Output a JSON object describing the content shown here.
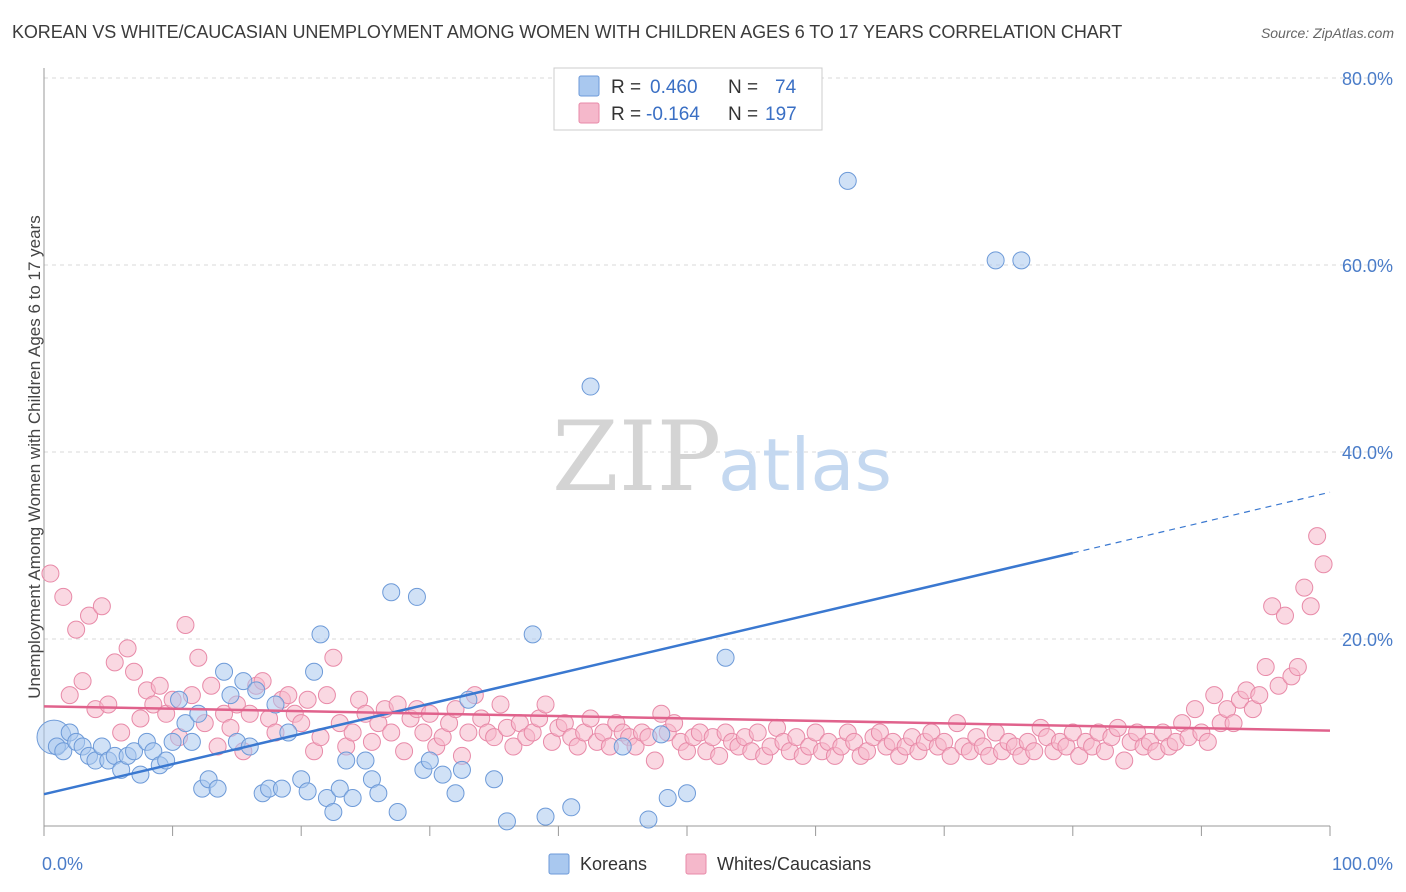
{
  "title": "KOREAN VS WHITE/CAUCASIAN UNEMPLOYMENT AMONG WOMEN WITH CHILDREN AGES 6 TO 17 YEARS CORRELATION CHART",
  "source": "Source: ZipAtlas.com",
  "watermark": {
    "part1": "ZIP",
    "part2": "atlas"
  },
  "colors": {
    "koreans_fill": "#a9c8ef",
    "koreans_stroke": "#6d9ad8",
    "koreans_line": "#3a78d0",
    "whites_fill": "#f5b8cb",
    "whites_stroke": "#e88aa8",
    "whites_line": "#e0628c",
    "grid": "#d9d9d9",
    "tick_label": "#4a7cc8"
  },
  "legend": {
    "rows": [
      {
        "r_label": "R =",
        "r_value": "0.460",
        "n_label": "N =",
        "n_value": "74"
      },
      {
        "r_label": "R =",
        "r_value": "-0.164",
        "n_label": "N =",
        "n_value": "197"
      }
    ]
  },
  "bottom_legend": [
    "Koreans",
    "Whites/Caucasians"
  ],
  "chart_data": {
    "type": "scatter",
    "title": "KOREAN VS WHITE/CAUCASIAN UNEMPLOYMENT AMONG WOMEN WITH CHILDREN AGES 6 TO 17 YEARS CORRELATION CHART",
    "xlabel": "",
    "ylabel": "Unemployment Among Women with Children Ages 6 to 17 years",
    "xlim": [
      0,
      100
    ],
    "ylim": [
      0,
      80
    ],
    "x_tick_labels": [
      "0.0%",
      "100.0%"
    ],
    "y_ticks": [
      20,
      40,
      60,
      80
    ],
    "y_tick_labels": [
      "20.0%",
      "40.0%",
      "60.0%",
      "80.0%"
    ],
    "grid": true,
    "legend_position": "top-center",
    "series": [
      {
        "name": "Koreans",
        "r": 0.46,
        "n": 74,
        "trend": {
          "x0": 0,
          "y0": 3.4,
          "x1": 80,
          "y1": 29.2,
          "dashed_to_x": 100,
          "dashed_to_y": 35.7
        },
        "points": [
          [
            0,
            9.5
          ],
          [
            1,
            8.5
          ],
          [
            1.5,
            8
          ],
          [
            2,
            10
          ],
          [
            2.5,
            9
          ],
          [
            3,
            8.5
          ],
          [
            3.5,
            7.5
          ],
          [
            4,
            7
          ],
          [
            4.5,
            8.5
          ],
          [
            5,
            7
          ],
          [
            5.5,
            7.5
          ],
          [
            6,
            6
          ],
          [
            6.5,
            7.5
          ],
          [
            7,
            8
          ],
          [
            7.5,
            5.5
          ],
          [
            8,
            9
          ],
          [
            8.5,
            8
          ],
          [
            9,
            6.5
          ],
          [
            9.5,
            7
          ],
          [
            10,
            9
          ],
          [
            10.5,
            13.5
          ],
          [
            11,
            11
          ],
          [
            11.5,
            9
          ],
          [
            12,
            12
          ],
          [
            12.3,
            4
          ],
          [
            12.8,
            5
          ],
          [
            13.5,
            4
          ],
          [
            14,
            16.5
          ],
          [
            14.5,
            14
          ],
          [
            15,
            9
          ],
          [
            15.5,
            15.5
          ],
          [
            16,
            8.5
          ],
          [
            16.5,
            14.5
          ],
          [
            17,
            3.5
          ],
          [
            17.5,
            4
          ],
          [
            18,
            13
          ],
          [
            18.5,
            4
          ],
          [
            19,
            10
          ],
          [
            20,
            5
          ],
          [
            20.5,
            3.7
          ],
          [
            21,
            16.5
          ],
          [
            21.5,
            20.5
          ],
          [
            22,
            3
          ],
          [
            22.5,
            1.5
          ],
          [
            23,
            4
          ],
          [
            23.5,
            7
          ],
          [
            24,
            3
          ],
          [
            25,
            7
          ],
          [
            25.5,
            5
          ],
          [
            26,
            3.5
          ],
          [
            27,
            25
          ],
          [
            27.5,
            1.5
          ],
          [
            29,
            24.5
          ],
          [
            29.5,
            6
          ],
          [
            30,
            7
          ],
          [
            31,
            5.5
          ],
          [
            32,
            3.5
          ],
          [
            32.5,
            6
          ],
          [
            33,
            13.5
          ],
          [
            35,
            5
          ],
          [
            36,
            0.5
          ],
          [
            38,
            20.5
          ],
          [
            39,
            1
          ],
          [
            41,
            2
          ],
          [
            42.5,
            47
          ],
          [
            47,
            0.7
          ],
          [
            48.5,
            3
          ],
          [
            50,
            3.5
          ],
          [
            53,
            18
          ],
          [
            62.5,
            69
          ],
          [
            74,
            60.5
          ],
          [
            76,
            60.5
          ],
          [
            45,
            8.5
          ],
          [
            48,
            9.8
          ]
        ]
      },
      {
        "name": "Whites/Caucasians",
        "r": -0.164,
        "n": 197,
        "trend": {
          "x0": 0,
          "y0": 12.8,
          "x1": 100,
          "y1": 10.2
        },
        "points": [
          [
            0.5,
            27
          ],
          [
            1.5,
            24.5
          ],
          [
            2,
            14
          ],
          [
            2.5,
            21
          ],
          [
            3,
            15.5
          ],
          [
            3.5,
            22.5
          ],
          [
            4,
            12.5
          ],
          [
            4.5,
            23.5
          ],
          [
            5,
            13
          ],
          [
            5.5,
            17.5
          ],
          [
            6,
            10
          ],
          [
            6.5,
            19
          ],
          [
            7,
            16.5
          ],
          [
            7.5,
            11.5
          ],
          [
            8,
            14.5
          ],
          [
            8.5,
            13
          ],
          [
            9,
            15
          ],
          [
            9.5,
            12
          ],
          [
            10,
            13.5
          ],
          [
            10.5,
            9.5
          ],
          [
            11,
            21.5
          ],
          [
            11.5,
            14
          ],
          [
            12,
            18
          ],
          [
            12.5,
            11
          ],
          [
            13,
            15
          ],
          [
            13.5,
            8.5
          ],
          [
            14,
            12
          ],
          [
            14.5,
            10.5
          ],
          [
            15,
            13
          ],
          [
            15.5,
            8
          ],
          [
            16,
            12
          ],
          [
            16.5,
            15
          ],
          [
            17,
            15.5
          ],
          [
            17.5,
            11.5
          ],
          [
            18,
            10
          ],
          [
            18.5,
            13.5
          ],
          [
            19,
            14
          ],
          [
            19.5,
            12
          ],
          [
            20,
            11
          ],
          [
            20.5,
            13.5
          ],
          [
            21,
            8
          ],
          [
            21.5,
            9.5
          ],
          [
            22,
            14
          ],
          [
            22.5,
            18
          ],
          [
            23,
            11
          ],
          [
            23.5,
            8.5
          ],
          [
            24,
            10
          ],
          [
            24.5,
            13.5
          ],
          [
            25,
            12
          ],
          [
            25.5,
            9
          ],
          [
            26,
            11
          ],
          [
            26.5,
            12.5
          ],
          [
            27,
            10
          ],
          [
            27.5,
            13
          ],
          [
            28,
            8
          ],
          [
            28.5,
            11.5
          ],
          [
            29,
            12.5
          ],
          [
            29.5,
            10
          ],
          [
            30,
            12
          ],
          [
            30.5,
            8.5
          ],
          [
            31,
            9.5
          ],
          [
            31.5,
            11
          ],
          [
            32,
            12.5
          ],
          [
            32.5,
            7.5
          ],
          [
            33,
            10
          ],
          [
            33.5,
            14
          ],
          [
            34,
            11.5
          ],
          [
            34.5,
            10
          ],
          [
            35,
            9.5
          ],
          [
            35.5,
            13
          ],
          [
            36,
            10.5
          ],
          [
            36.5,
            8.5
          ],
          [
            37,
            11
          ],
          [
            37.5,
            9.5
          ],
          [
            38,
            10
          ],
          [
            38.5,
            11.5
          ],
          [
            39,
            13
          ],
          [
            39.5,
            9
          ],
          [
            40,
            10.5
          ],
          [
            40.5,
            11
          ],
          [
            41,
            9.5
          ],
          [
            41.5,
            8.5
          ],
          [
            42,
            10
          ],
          [
            42.5,
            11.5
          ],
          [
            43,
            9
          ],
          [
            43.5,
            10
          ],
          [
            44,
            8.5
          ],
          [
            44.5,
            11
          ],
          [
            45,
            10
          ],
          [
            45.5,
            9.5
          ],
          [
            46,
            8.5
          ],
          [
            46.5,
            10
          ],
          [
            47,
            9.5
          ],
          [
            47.5,
            7
          ],
          [
            48,
            12
          ],
          [
            48.5,
            10
          ],
          [
            49,
            11
          ],
          [
            49.5,
            9
          ],
          [
            50,
            8
          ],
          [
            50.5,
            9.5
          ],
          [
            51,
            10
          ],
          [
            51.5,
            8
          ],
          [
            52,
            9.5
          ],
          [
            52.5,
            7.5
          ],
          [
            53,
            10
          ],
          [
            53.5,
            9
          ],
          [
            54,
            8.5
          ],
          [
            54.5,
            9.5
          ],
          [
            55,
            8
          ],
          [
            55.5,
            10
          ],
          [
            56,
            7.5
          ],
          [
            56.5,
            8.5
          ],
          [
            57,
            10.5
          ],
          [
            57.5,
            9
          ],
          [
            58,
            8
          ],
          [
            58.5,
            9.5
          ],
          [
            59,
            7.5
          ],
          [
            59.5,
            8.5
          ],
          [
            60,
            10
          ],
          [
            60.5,
            8
          ],
          [
            61,
            9
          ],
          [
            61.5,
            7.5
          ],
          [
            62,
            8.5
          ],
          [
            62.5,
            10
          ],
          [
            63,
            9
          ],
          [
            63.5,
            7.5
          ],
          [
            64,
            8
          ],
          [
            64.5,
            9.5
          ],
          [
            65,
            10
          ],
          [
            65.5,
            8.5
          ],
          [
            66,
            9
          ],
          [
            66.5,
            7.5
          ],
          [
            67,
            8.5
          ],
          [
            67.5,
            9.5
          ],
          [
            68,
            8
          ],
          [
            68.5,
            9
          ],
          [
            69,
            10
          ],
          [
            69.5,
            8.5
          ],
          [
            70,
            9
          ],
          [
            70.5,
            7.5
          ],
          [
            71,
            11
          ],
          [
            71.5,
            8.5
          ],
          [
            72,
            8
          ],
          [
            72.5,
            9.5
          ],
          [
            73,
            8.5
          ],
          [
            73.5,
            7.5
          ],
          [
            74,
            10
          ],
          [
            74.5,
            8
          ],
          [
            75,
            9
          ],
          [
            75.5,
            8.5
          ],
          [
            76,
            7.5
          ],
          [
            76.5,
            9
          ],
          [
            77,
            8
          ],
          [
            77.5,
            10.5
          ],
          [
            78,
            9.5
          ],
          [
            78.5,
            8
          ],
          [
            79,
            9
          ],
          [
            79.5,
            8.5
          ],
          [
            80,
            10
          ],
          [
            80.5,
            7.5
          ],
          [
            81,
            9
          ],
          [
            81.5,
            8.5
          ],
          [
            82,
            10
          ],
          [
            82.5,
            8
          ],
          [
            83,
            9.5
          ],
          [
            83.5,
            10.5
          ],
          [
            84,
            7
          ],
          [
            84.5,
            9
          ],
          [
            85,
            10
          ],
          [
            85.5,
            8.5
          ],
          [
            86,
            9
          ],
          [
            86.5,
            8
          ],
          [
            87,
            10
          ],
          [
            87.5,
            8.5
          ],
          [
            88,
            9
          ],
          [
            88.5,
            11
          ],
          [
            89,
            9.5
          ],
          [
            89.5,
            12.5
          ],
          [
            90,
            10
          ],
          [
            90.5,
            9
          ],
          [
            91,
            14
          ],
          [
            91.5,
            11
          ],
          [
            92,
            12.5
          ],
          [
            92.5,
            11
          ],
          [
            93,
            13.5
          ],
          [
            93.5,
            14.5
          ],
          [
            94,
            12.5
          ],
          [
            94.5,
            14
          ],
          [
            95,
            17
          ],
          [
            95.5,
            23.5
          ],
          [
            96,
            15
          ],
          [
            96.5,
            22.5
          ],
          [
            97,
            16
          ],
          [
            97.5,
            17
          ],
          [
            98,
            25.5
          ],
          [
            98.5,
            23.5
          ],
          [
            99,
            31
          ],
          [
            99.5,
            28
          ]
        ]
      }
    ]
  }
}
